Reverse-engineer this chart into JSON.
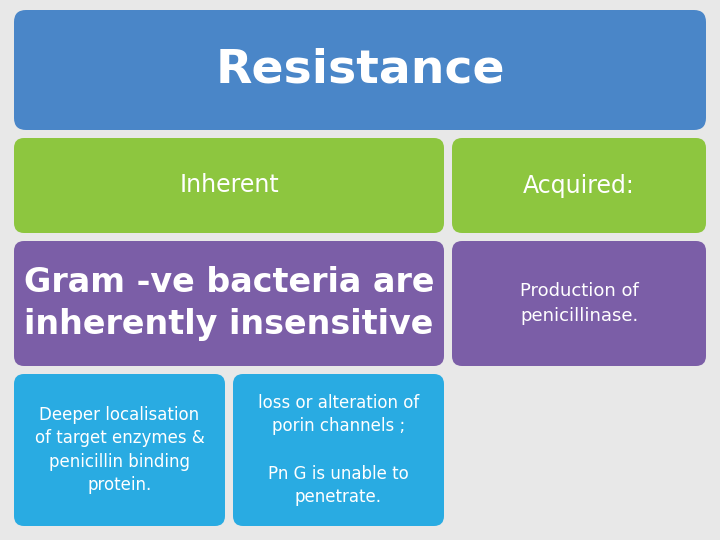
{
  "background_color": "#e8e8e8",
  "title_text": "Resistance",
  "title_bg": "#4a86c8",
  "title_text_color": "#ffffff",
  "title_fontsize": 34,
  "title_fontweight": "bold",
  "inherent_bg": "#8dc63f",
  "inherent_text": "Inherent",
  "inherent_text_color": "#ffffff",
  "inherent_fontsize": 17,
  "acquired_bg": "#8dc63f",
  "acquired_text": "Acquired:",
  "acquired_text_color": "#ffffff",
  "acquired_fontsize": 17,
  "gram_bg": "#7b5ea7",
  "gram_text": "Gram -ve bacteria are\ninherently insensitive",
  "gram_text_color": "#ffffff",
  "gram_fontsize": 24,
  "gram_fontweight": "bold",
  "prod_bg": "#7b5ea7",
  "prod_text": "Production of\npenicillinase.",
  "prod_text_color": "#ffffff",
  "prod_fontsize": 13,
  "deeper_bg": "#29abe2",
  "deeper_text": "Deeper localisation\nof target enzymes &\npenicillin binding\nprotein.",
  "deeper_text_color": "#ffffff",
  "deeper_fontsize": 12,
  "loss_bg": "#29abe2",
  "loss_text": "loss or alteration of\nporin channels ;\n\nPn G is unable to\npenetrate.",
  "loss_text_color": "#ffffff",
  "loss_fontsize": 12,
  "fig_w": 7.2,
  "fig_h": 5.4,
  "dpi": 100
}
